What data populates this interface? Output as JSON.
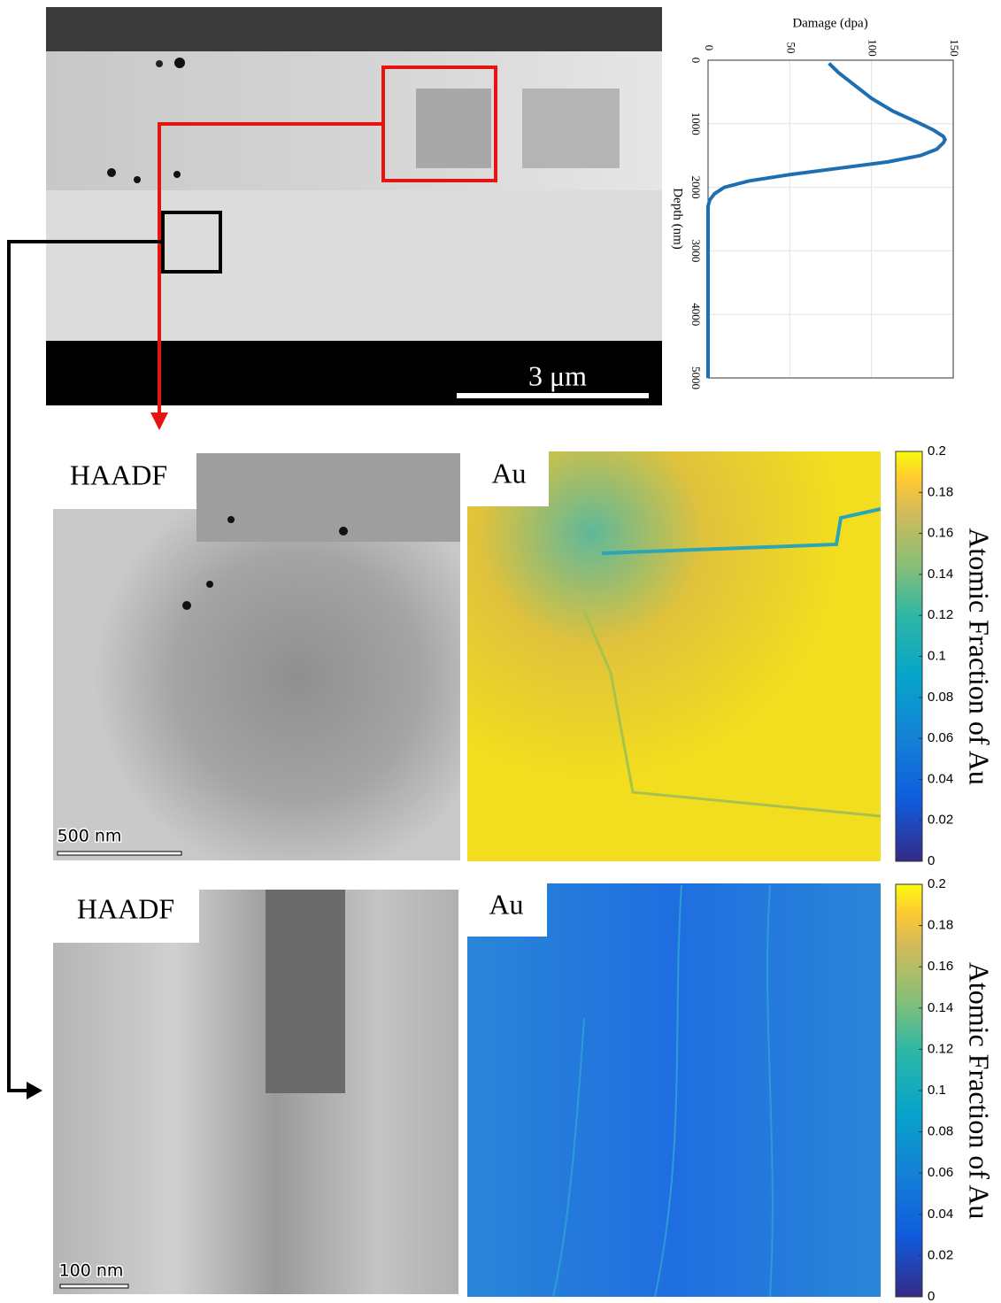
{
  "labels": {
    "overview_scale": "3 μm",
    "haadf_top": "HAADF",
    "au_top": "Au",
    "scale_top": "500 nm",
    "haadf_bottom": "HAADF",
    "au_bottom": "Au",
    "scale_bottom": "100 nm"
  },
  "chart_data": [
    {
      "type": "line",
      "y_label": "Damage (dpa)",
      "x_label": "Depth (nm)",
      "x": [
        50,
        200,
        400,
        600,
        800,
        1000,
        1100,
        1200,
        1250,
        1300,
        1400,
        1500,
        1600,
        1700,
        1800,
        1900,
        2000,
        2100,
        2200,
        2300,
        2500,
        3000,
        3500,
        4000,
        4500,
        5000
      ],
      "values": [
        74,
        80,
        90,
        100,
        113,
        130,
        138,
        144,
        145,
        144,
        140,
        130,
        110,
        80,
        50,
        25,
        10,
        4,
        1,
        0,
        0,
        0,
        0,
        0,
        0,
        0
      ],
      "color": "#1f6fb0",
      "xlim": [
        0,
        5000
      ],
      "xticks": [
        0,
        1000,
        2000,
        3000,
        4000,
        5000
      ],
      "ylim": [
        0,
        150
      ],
      "yticks": [
        0,
        50,
        100,
        150
      ],
      "grid": true
    },
    {
      "type": "colorbar",
      "label": "Atomic Fraction of Au",
      "ylim": [
        0,
        0.2
      ],
      "yticks": [
        0,
        0.02,
        0.04,
        0.06,
        0.08,
        0.1,
        0.12,
        0.14,
        0.16,
        0.18,
        0.2
      ]
    },
    {
      "type": "colorbar",
      "label": "Atomic Fraction of Au",
      "ylim": [
        0,
        0.2
      ],
      "yticks": [
        0,
        0.02,
        0.04,
        0.06,
        0.08,
        0.1,
        0.12,
        0.14,
        0.16,
        0.18,
        0.2
      ]
    }
  ]
}
